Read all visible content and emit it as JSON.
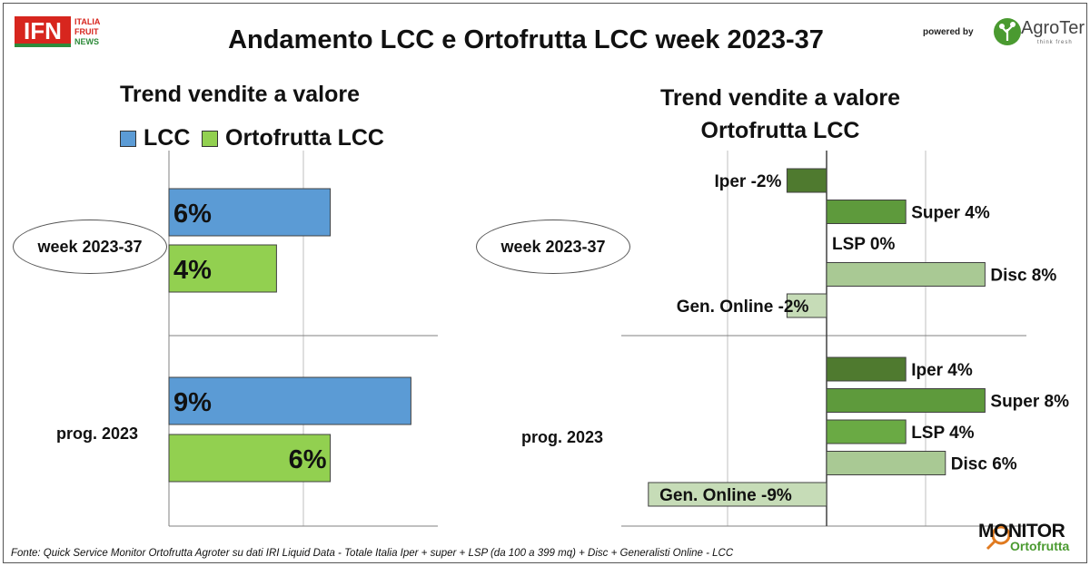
{
  "header": {
    "title": "Andamento LCC e Ortofrutta LCC week 2023-37",
    "ifn_logo": {
      "main": "IFN",
      "lines": [
        "ITALIA",
        "FRUIT",
        "NEWS"
      ]
    },
    "powered_by": "powered by",
    "agroter": {
      "name": "AgroTer",
      "tagline": "think fresh"
    }
  },
  "colors": {
    "lcc": "#5b9bd5",
    "ortofrutta": "#92d050",
    "iper": "#4f7a2f",
    "super": "#5e9a3c",
    "lsp": "#6aaa44",
    "disc": "#a9c994",
    "online": "#c6dcb7"
  },
  "chart_data": [
    {
      "type": "bar",
      "orientation": "horizontal",
      "title": "Trend vendite a valore",
      "categories": [
        "week 2023-37",
        "prog. 2023"
      ],
      "series": [
        {
          "name": "LCC",
          "values": [
            6,
            9
          ],
          "labels": [
            "6%",
            "9%"
          ]
        },
        {
          "name": "Ortofrutta LCC",
          "values": [
            4,
            6
          ],
          "labels": [
            "4%",
            "6%"
          ]
        }
      ],
      "unit": "%",
      "xlim": [
        0,
        10
      ],
      "grid": true,
      "legend": "top"
    },
    {
      "type": "bar",
      "orientation": "horizontal",
      "title": "Trend vendite a valore Ortofrutta LCC",
      "title_lines": [
        "Trend vendite a valore",
        "Ortofrutta LCC"
      ],
      "categories": [
        "week 2023-37",
        "prog. 2023"
      ],
      "segments": [
        "Iper",
        "Super",
        "LSP",
        "Disc",
        "Gen. Online"
      ],
      "groups": [
        {
          "name": "week 2023-37",
          "bars": [
            {
              "segment": "Iper",
              "value": -2,
              "label": "Iper -2%"
            },
            {
              "segment": "Super",
              "value": 4,
              "label": "Super 4%"
            },
            {
              "segment": "LSP",
              "value": 0,
              "label": "LSP 0%"
            },
            {
              "segment": "Disc",
              "value": 8,
              "label": "Disc 8%"
            },
            {
              "segment": "Gen. Online",
              "value": -2,
              "label": "Gen. Online -2%"
            }
          ]
        },
        {
          "name": "prog. 2023",
          "bars": [
            {
              "segment": "Iper",
              "value": 4,
              "label": "Iper 4%"
            },
            {
              "segment": "Super",
              "value": 8,
              "label": "Super 8%"
            },
            {
              "segment": "LSP",
              "value": 4,
              "label": "LSP 4%"
            },
            {
              "segment": "Disc",
              "value": 6,
              "label": "Disc 6%"
            },
            {
              "segment": "Gen. Online",
              "value": -9,
              "label": "Gen. Online -9%"
            }
          ]
        }
      ],
      "unit": "%",
      "xlim": [
        -10,
        10
      ],
      "grid": true,
      "legend": "none"
    }
  ],
  "footer": {
    "source": "Fonte: Quick Service Monitor Ortofrutta Agroter su dati IRI Liquid Data - Totale Italia Iper + super + LSP (da 100 a 399 mq) + Disc + Generalisti Online - LCC",
    "monitor_logo": {
      "main": "MONITOR",
      "sub": "Ortofrutta"
    }
  }
}
